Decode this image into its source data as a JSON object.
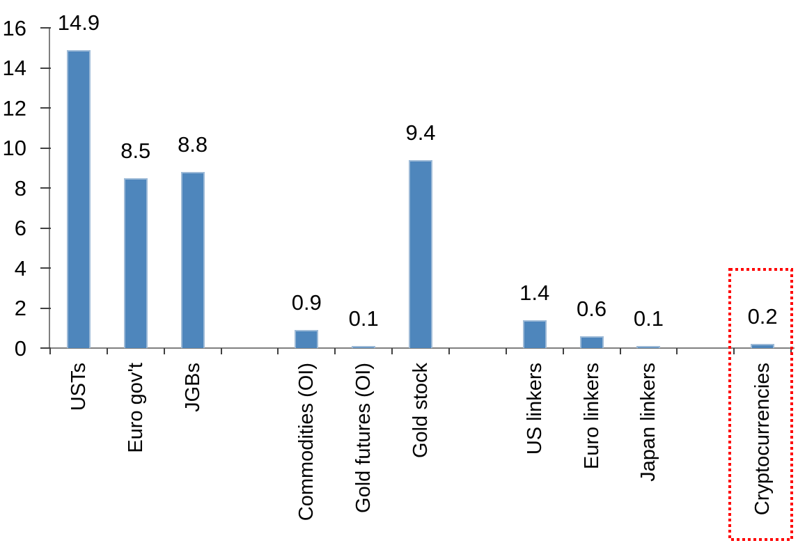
{
  "chart_data": {
    "type": "bar",
    "title": "",
    "xlabel": "",
    "ylabel": "",
    "categories": [
      "USTs",
      "Euro gov't",
      "JGBs",
      "Commodities (OI)",
      "Gold futures (OI)",
      "Gold stock",
      "US linkers",
      "Euro linkers",
      "Japan linkers",
      "Cryptocurrencies"
    ],
    "values": [
      14.9,
      8.5,
      8.8,
      0.9,
      0.1,
      9.4,
      1.4,
      0.6,
      0.1,
      0.2
    ],
    "data_labels": [
      "14.9",
      "8.5",
      "8.8",
      "0.9",
      "0.1",
      "9.4",
      "1.4",
      "0.6",
      "0.1",
      "0.2"
    ],
    "group_breaks_after": [
      "JGBs",
      "Gold stock",
      "Japan linkers"
    ],
    "y_ticks": [
      0,
      2,
      4,
      6,
      8,
      10,
      12,
      14,
      16
    ],
    "ylim": [
      0,
      16
    ],
    "grid": false,
    "legend": null,
    "highlighted_category": "Cryptocurrencies"
  },
  "colors": {
    "bar_fill": "#4E86BC",
    "bar_edge": "#9DBAD7",
    "axis_line": "#7F7F7F",
    "tick": "#404040",
    "text": "#000000",
    "highlight_border": "#FF0000",
    "background": "#FFFFFF"
  }
}
